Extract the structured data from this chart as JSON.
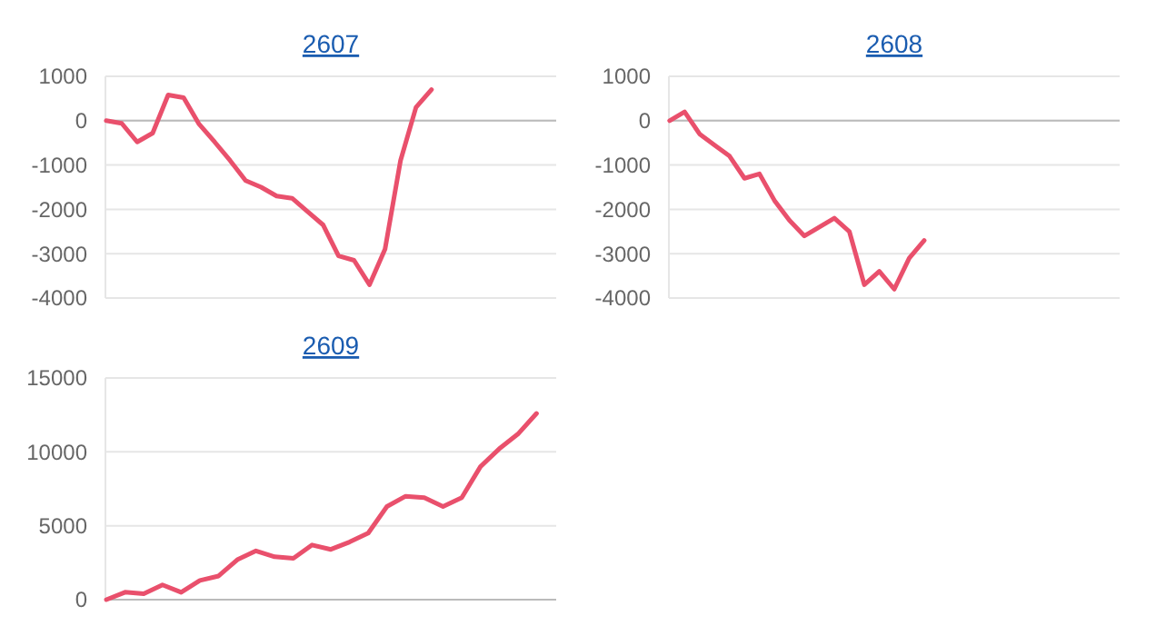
{
  "chart_data": [
    {
      "type": "line",
      "title": "2607",
      "categories": [
        null,
        null,
        null,
        null,
        null,
        null,
        null,
        null,
        null,
        null,
        null,
        null,
        null,
        null,
        null,
        null,
        null,
        null,
        null,
        null,
        null,
        null,
        null,
        null,
        null,
        null,
        null,
        null,
        null,
        null
      ],
      "values": [
        0,
        -60,
        -480,
        -280,
        580,
        520,
        -80,
        -480,
        -900,
        -1350,
        -1500,
        -1700,
        -1750,
        -2050,
        -2350,
        -3050,
        -3150,
        -3700,
        -2900,
        -900,
        300,
        700,
        null,
        null,
        null,
        null,
        null,
        null,
        null,
        null
      ],
      "color": "#e9506c",
      "ylim": [
        -4000,
        1000
      ],
      "yticks": [
        -4000,
        -3000,
        -2000,
        -1000,
        0,
        1000
      ],
      "grid": "y",
      "tick_labels": "y",
      "marker": "none"
    },
    {
      "type": "line",
      "title": "2608",
      "categories": [
        null,
        null,
        null,
        null,
        null,
        null,
        null,
        null,
        null,
        null,
        null,
        null,
        null,
        null,
        null,
        null,
        null,
        null,
        null,
        null,
        null,
        null,
        null,
        null,
        null,
        null,
        null,
        null,
        null,
        null,
        null
      ],
      "values": [
        0,
        200,
        -300,
        -550,
        -800,
        -1300,
        -1200,
        -1800,
        -2250,
        -2600,
        -2400,
        -2200,
        -2500,
        -3700,
        -3400,
        -3800,
        -3100,
        -2700,
        null,
        null,
        null,
        null,
        null,
        null,
        null,
        null,
        null,
        null,
        null,
        null,
        null
      ],
      "color": "#e9506c",
      "ylim": [
        -4000,
        1000
      ],
      "yticks": [
        -4000,
        -3000,
        -2000,
        -1000,
        0,
        1000
      ],
      "grid": "y",
      "tick_labels": "y",
      "marker": "none"
    },
    {
      "type": "line",
      "title": "2609",
      "categories": [
        null,
        null,
        null,
        null,
        null,
        null,
        null,
        null,
        null,
        null,
        null,
        null,
        null,
        null,
        null,
        null,
        null,
        null,
        null,
        null,
        null,
        null,
        null,
        null,
        null
      ],
      "values": [
        0,
        500,
        400,
        1000,
        500,
        1300,
        1600,
        2700,
        3300,
        2900,
        2800,
        3700,
        3400,
        3900,
        4500,
        6300,
        7000,
        6900,
        6300,
        6900,
        9000,
        10200,
        11200,
        12600,
        null
      ],
      "color": "#e9506c",
      "ylim": [
        0,
        15000
      ],
      "yticks": [
        0,
        5000,
        10000,
        15000
      ],
      "grid": "y",
      "tick_labels": "y",
      "marker": "none"
    }
  ]
}
